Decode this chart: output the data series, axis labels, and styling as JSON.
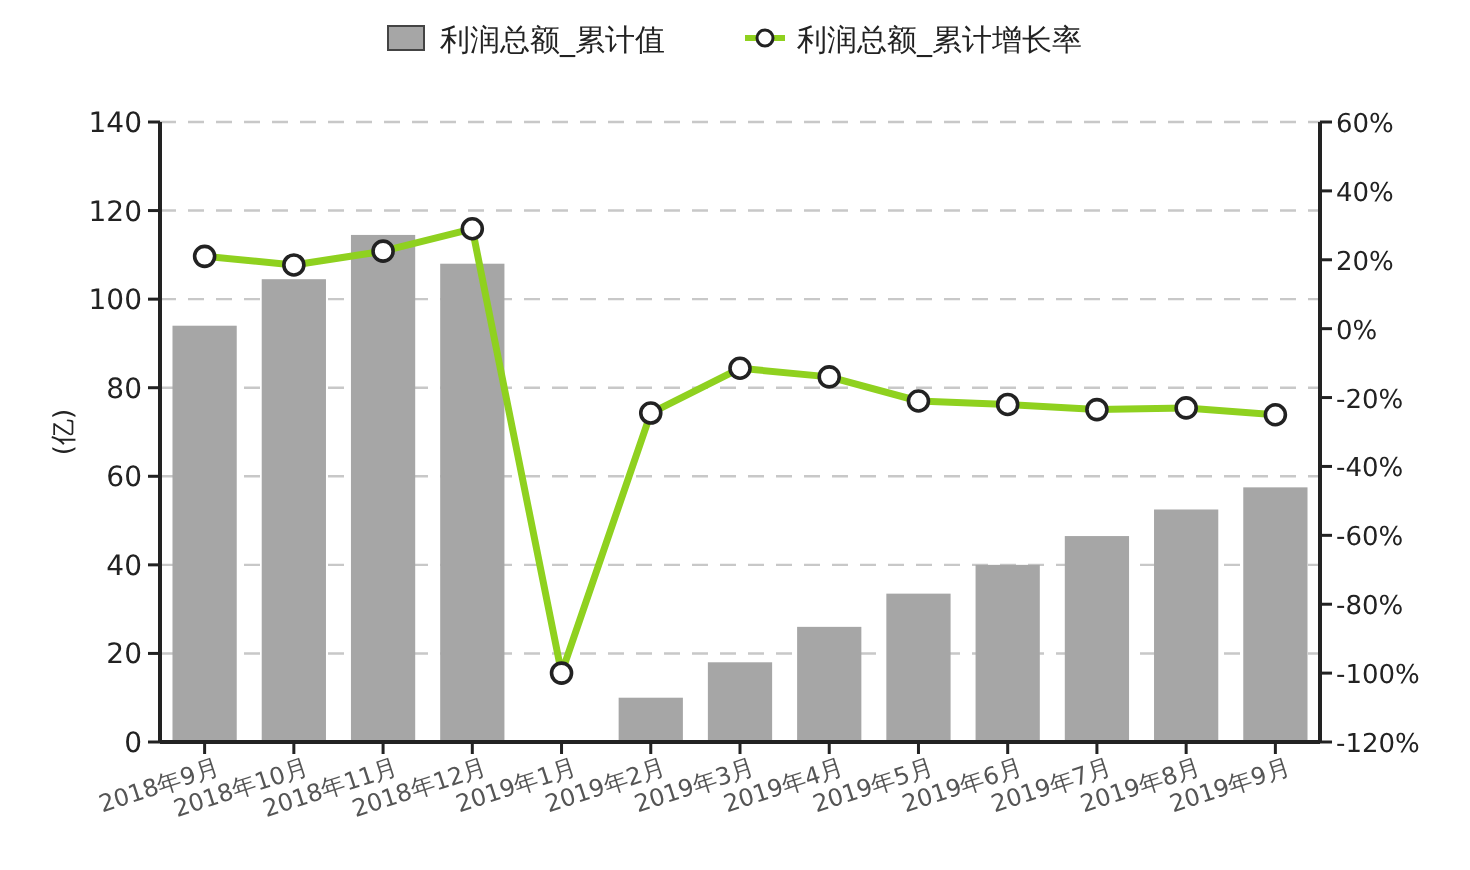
{
  "chart_data": {
    "type": "bar",
    "categories": [
      "2018年9月",
      "2018年10月",
      "2018年11月",
      "2018年12月",
      "2019年1月",
      "2019年2月",
      "2019年3月",
      "2019年4月",
      "2019年5月",
      "2019年6月",
      "2019年7月",
      "2019年8月",
      "2019年9月"
    ],
    "series": [
      {
        "name": "利润总额_累计值",
        "color": "#a6a6a6",
        "values": [
          94,
          104.5,
          114.5,
          108,
          null,
          10,
          18,
          26,
          33.5,
          40,
          46.5,
          52.5,
          57.5
        ]
      },
      {
        "name": "利润总额_累计增长率",
        "type": "line",
        "axis": "y2",
        "color": "#8fd11f",
        "marker": "circle",
        "values": [
          21,
          18.5,
          22.5,
          29,
          -100,
          -24.5,
          -11.5,
          -14,
          -21,
          -22,
          -23.5,
          -23,
          -25
        ]
      }
    ],
    "ylabel": "(亿)",
    "ylim": [
      0,
      140
    ],
    "yticks": [
      0,
      20,
      40,
      60,
      80,
      100,
      120,
      140
    ],
    "y2lim": [
      -120,
      60
    ],
    "y2ticks": [
      {
        "value": -120,
        "label": "-120%"
      },
      {
        "value": -100,
        "label": "-100%"
      },
      {
        "value": -80,
        "label": "-80%"
      },
      {
        "value": -60,
        "label": "-60%"
      },
      {
        "value": -40,
        "label": "-40%"
      },
      {
        "value": -20,
        "label": "-20%"
      },
      {
        "value": 0,
        "label": "0%"
      },
      {
        "value": 20,
        "label": "20%"
      },
      {
        "value": 40,
        "label": "40%"
      },
      {
        "value": 60,
        "label": "60%"
      }
    ],
    "grid": "y",
    "legend": "top"
  }
}
